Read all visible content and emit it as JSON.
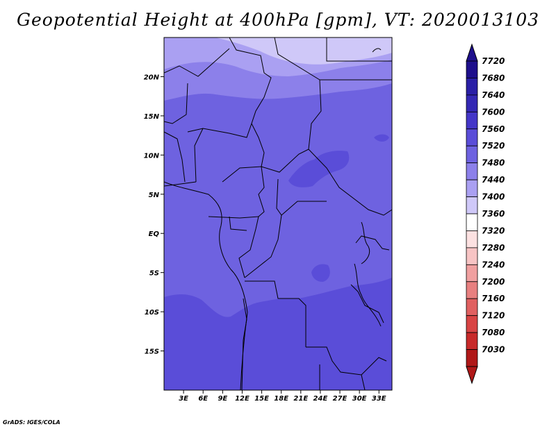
{
  "title": "Geopotential Height at 400hPa [gpm], VT: 2020013103",
  "credit": "GrADS: IGES/COLA",
  "map": {
    "lat_labels": [
      "20N",
      "15N",
      "10N",
      "5N",
      "EQ",
      "5S",
      "10S",
      "15S"
    ],
    "lon_labels": [
      "3E",
      "6E",
      "9E",
      "12E",
      "15E",
      "18E",
      "21E",
      "24E",
      "27E",
      "30E",
      "33E"
    ],
    "lat_range": [
      -20,
      25
    ],
    "lon_range": [
      0,
      35
    ]
  },
  "colorbar": {
    "levels": [
      "7720",
      "7680",
      "7640",
      "7600",
      "7560",
      "7520",
      "7480",
      "7440",
      "7400",
      "7360",
      "7320",
      "7280",
      "7240",
      "7200",
      "7160",
      "7120",
      "7080",
      "7030"
    ],
    "colors": {
      "c7720": "#1e0f8c",
      "c7680": "#2a1fa6",
      "c7640": "#3428b4",
      "c7600": "#4436c8",
      "c7560": "#5a4dd8",
      "c7520": "#6e62e0",
      "c7480": "#8c80ea",
      "c7440": "#aaa0f2",
      "c7400": "#cfc8f8",
      "c7360": "#ffffff",
      "c7320": "#fce1e1",
      "c7280": "#f7c4c4",
      "c7240": "#f0a0a0",
      "c7200": "#e88080",
      "c7160": "#e06060",
      "c7120": "#d84444",
      "c7080": "#c82a2a",
      "c7030": "#b01818"
    }
  }
}
